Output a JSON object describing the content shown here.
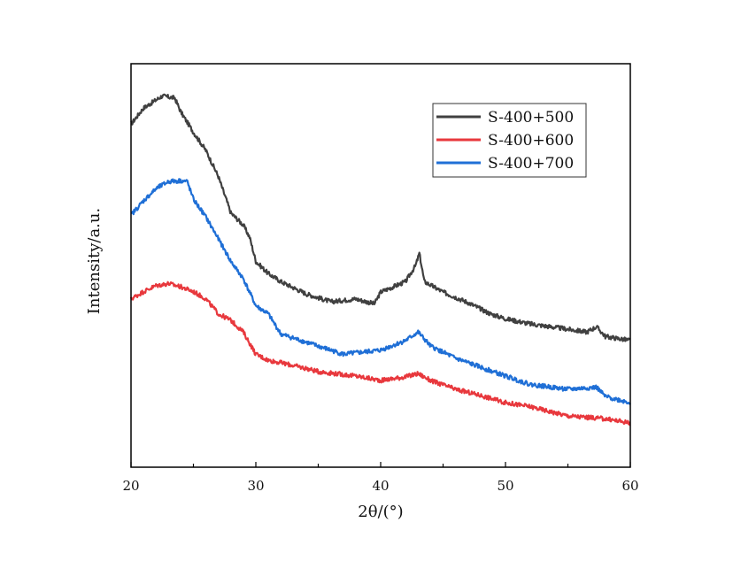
{
  "chart_data": {
    "type": "line",
    "title": "",
    "xlabel": "2θ/(°)",
    "ylabel": "Intensity/a.u.",
    "xlim": [
      20,
      60
    ],
    "ylim": [
      0,
      100
    ],
    "xticks": [
      "20",
      "30",
      "40",
      "50",
      "60"
    ],
    "grid": false,
    "legend_position": "top-right",
    "series": [
      {
        "name": "S-400+500",
        "color": "#404040",
        "x": [
          20,
          21,
          22,
          22.5,
          23.5,
          24,
          25,
          26,
          27,
          28,
          29,
          29.5,
          30,
          31,
          32,
          34,
          35,
          36,
          38,
          39.5,
          40,
          42,
          42.8,
          43.1,
          43.5,
          45,
          47,
          48.8,
          50,
          52,
          55,
          56.5,
          57.3,
          58,
          60
        ],
        "y": [
          85,
          89,
          91,
          92,
          91.5,
          88,
          83,
          78.5,
          72,
          63,
          60,
          57,
          51,
          48,
          46,
          43,
          42,
          41,
          41.7,
          40.5,
          43.4,
          46,
          50,
          53,
          46,
          43.4,
          40.8,
          38,
          36.8,
          35.5,
          34.2,
          33.5,
          34.8,
          32.4,
          31.4
        ]
      },
      {
        "name": "S-400+600",
        "color": "#e8383d",
        "x": [
          20,
          21,
          22,
          23,
          24,
          25,
          26,
          27,
          28,
          29,
          30,
          31,
          32,
          34,
          35,
          38,
          40,
          42,
          43,
          44,
          46,
          48,
          50,
          52,
          55,
          58,
          60
        ],
        "y": [
          41.7,
          43.5,
          45,
          45.5,
          44.7,
          43.5,
          41.7,
          38,
          36.4,
          33.5,
          28,
          26.5,
          25.9,
          24.5,
          23.7,
          22.6,
          21.5,
          22.4,
          23.2,
          21.5,
          19.3,
          17.8,
          16,
          15,
          12.7,
          12,
          11
        ]
      },
      {
        "name": "S-400+700",
        "color": "#1f6fd6",
        "x": [
          20,
          21,
          22,
          23,
          24,
          24.5,
          25,
          26,
          27,
          28,
          29,
          30,
          31,
          32,
          34,
          35,
          37,
          40,
          42,
          43,
          44,
          46,
          48,
          50,
          52,
          55,
          57.3,
          58,
          60
        ],
        "y": [
          62.5,
          66,
          69,
          70.8,
          71,
          70.8,
          66.4,
          62,
          56.6,
          51,
          46.7,
          40,
          38,
          33,
          31,
          30,
          28,
          29,
          31.4,
          33.5,
          30,
          27,
          24.8,
          22.6,
          20.5,
          19.3,
          19.8,
          17.5,
          16
        ]
      }
    ]
  }
}
